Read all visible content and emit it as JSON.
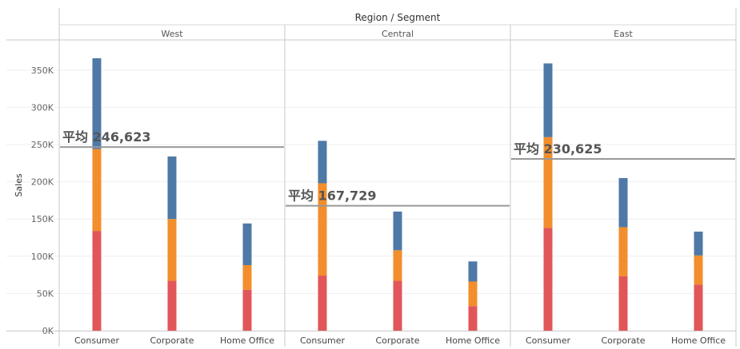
{
  "chart_data": {
    "type": "bar",
    "stacked": true,
    "column_header": "Region / Segment",
    "ylabel": "Sales",
    "ylim": [
      0,
      375000
    ],
    "yticks": [
      "0K",
      "50K",
      "100K",
      "150K",
      "200K",
      "250K",
      "300K",
      "350K"
    ],
    "ytick_values": [
      0,
      50000,
      100000,
      150000,
      200000,
      250000,
      300000,
      350000
    ],
    "grid": true,
    "average_prefix": "平均",
    "series_colors": [
      "#e15759",
      "#f28e2b",
      "#4e79a7"
    ],
    "regions": [
      {
        "name": "West",
        "average_value": 246623,
        "average_label": "246,623",
        "segments": [
          {
            "name": "Consumer",
            "stack": [
              134000,
              110000,
              122000
            ]
          },
          {
            "name": "Corporate",
            "stack": [
              67000,
              83000,
              84000
            ]
          },
          {
            "name": "Home Office",
            "stack": [
              55000,
              33000,
              56000
            ]
          }
        ]
      },
      {
        "name": "Central",
        "average_value": 167729,
        "average_label": "167,729",
        "segments": [
          {
            "name": "Consumer",
            "stack": [
              74000,
              124000,
              57000
            ]
          },
          {
            "name": "Corporate",
            "stack": [
              67000,
              41000,
              52000
            ]
          },
          {
            "name": "Home Office",
            "stack": [
              33000,
              33000,
              27000
            ]
          }
        ]
      },
      {
        "name": "East",
        "average_value": 230625,
        "average_label": "230,625",
        "segments": [
          {
            "name": "Consumer",
            "stack": [
              138000,
              122000,
              99000
            ]
          },
          {
            "name": "Corporate",
            "stack": [
              73000,
              66000,
              66000
            ]
          },
          {
            "name": "Home Office",
            "stack": [
              62000,
              39000,
              32000
            ]
          }
        ]
      }
    ]
  }
}
